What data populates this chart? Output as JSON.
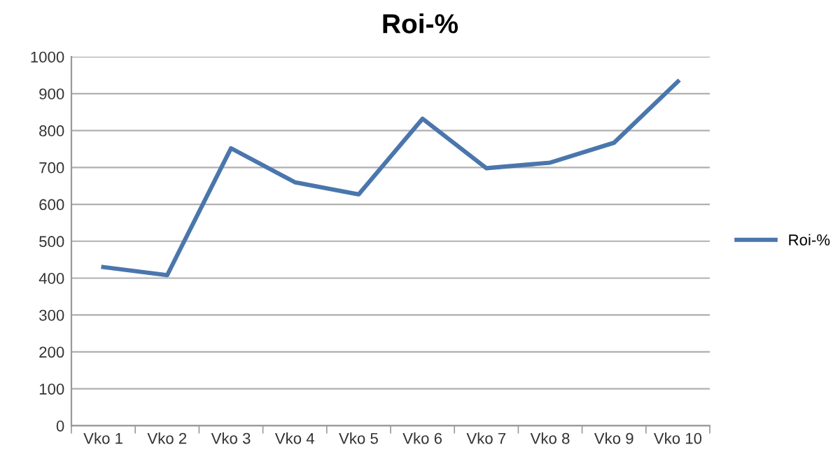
{
  "chart_data": {
    "type": "line",
    "title": "Roi-%",
    "categories": [
      "Vko 1",
      "Vko 2",
      "Vko 3",
      "Vko 4",
      "Vko 5",
      "Vko 6",
      "Vko 7",
      "Vko 8",
      "Vko 9",
      "Vko 10"
    ],
    "series": [
      {
        "name": "Roi-%",
        "color": "#4a76ac",
        "values": [
          430,
          408,
          752,
          660,
          627,
          832,
          698,
          713,
          767,
          933
        ]
      }
    ],
    "ylim": [
      0,
      1000
    ],
    "yticks": [
      0,
      100,
      200,
      300,
      400,
      500,
      600,
      700,
      800,
      900,
      1000
    ],
    "grid": "y",
    "legend": "right",
    "marker": "none",
    "line_style": "solid"
  }
}
